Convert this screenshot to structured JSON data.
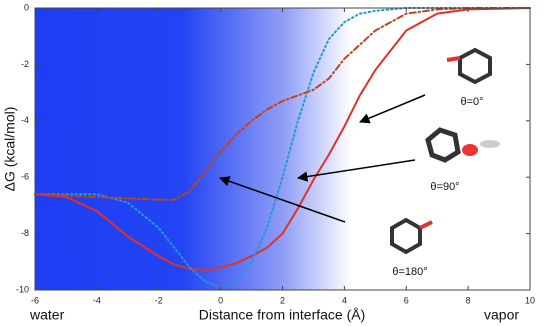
{
  "chart_data": {
    "type": "line",
    "x_label": "Distance from interface (Å)",
    "y_label": "ΔG (kcal/mol)",
    "annotations": [
      "θ=0°",
      "θ=90°",
      "θ=180°",
      "water",
      "vapor"
    ],
    "x": [
      -6,
      -5,
      -4,
      -3,
      -2,
      -1.5,
      -1,
      -0.5,
      0,
      0.5,
      1,
      1.5,
      2,
      2.5,
      3,
      3.5,
      4,
      4.5,
      5,
      6,
      7,
      8,
      10
    ],
    "series": [
      {
        "color": "#e0302a",
        "style": "solid",
        "values": [
          -6.6,
          -6.7,
          -7.2,
          -8.1,
          -8.8,
          -9.1,
          -9.25,
          -9.3,
          -9.2,
          -9.05,
          -8.8,
          -8.5,
          -8.0,
          -7.1,
          -6.1,
          -5.2,
          -4.2,
          -3.1,
          -2.2,
          -0.8,
          -0.2,
          -0.05,
          0
        ]
      },
      {
        "color": "#1e9ad6",
        "style": "dotted",
        "values": [
          -6.6,
          -6.6,
          -6.6,
          -6.9,
          -7.8,
          -8.5,
          -9.2,
          -9.7,
          -9.9,
          -9.7,
          -9.0,
          -7.8,
          -6.0,
          -4.0,
          -2.3,
          -1.1,
          -0.5,
          -0.2,
          -0.1,
          0,
          0,
          0,
          0
        ]
      },
      {
        "color": "#c0441c",
        "style": "dashdot",
        "values": [
          -6.6,
          -6.65,
          -6.7,
          -6.75,
          -6.8,
          -6.8,
          -6.5,
          -5.8,
          -5.1,
          -4.5,
          -4.0,
          -3.6,
          -3.3,
          -3.1,
          -2.9,
          -2.5,
          -1.8,
          -1.3,
          -0.8,
          -0.2,
          -0.05,
          0,
          0
        ]
      }
    ],
    "xlim": [
      -6,
      10
    ],
    "xticks": [
      -6,
      -4,
      -2,
      0,
      2,
      4,
      6,
      8,
      10
    ],
    "ylim": [
      -10,
      0
    ],
    "yticks": [
      0,
      -2,
      -4,
      -6,
      -8,
      -10
    ]
  }
}
